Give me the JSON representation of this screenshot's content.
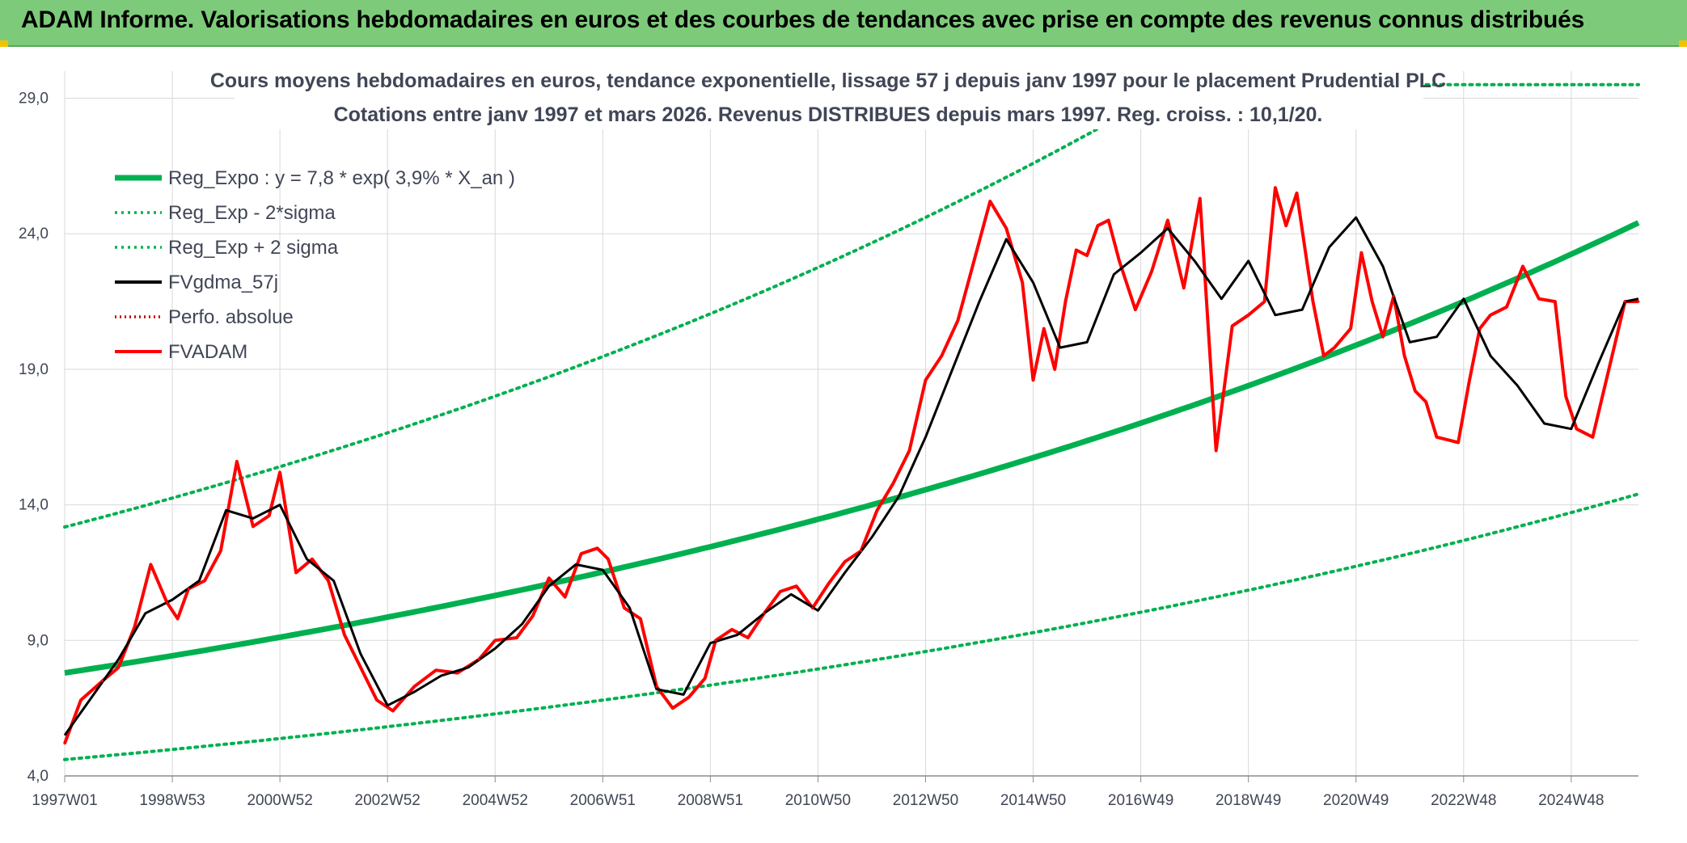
{
  "banner": {
    "title": "ADAM Informe. Valorisations hebdomadaires en euros et des courbes de tendances avec prise en compte des revenus connus distribués"
  },
  "colors": {
    "banner_bg": "#7dcb7a",
    "reg_expo": "#00b050",
    "sigma": "#00b050",
    "gdma": "#000000",
    "perfo": "#c00000",
    "fvadam": "#ff0000",
    "grid": "#d9d9d9"
  },
  "chart_data": {
    "type": "line",
    "title": "Cours moyens hebdomadaires en euros, tendance exponentielle, lissage 57 j depuis janv 1997 pour le placement Prudential PLC",
    "subtitle": "Cotations entre janv 1997 et mars 2026. Revenus DISTRIBUES depuis mars 1997. Reg. croiss. : 10,1/20.",
    "xlabel": "",
    "ylabel": "",
    "x_range": [
      1997.0,
      2026.25
    ],
    "ylim": [
      4.0,
      30.0
    ],
    "y_ticks": [
      "4,0",
      "9,0",
      "14,0",
      "19,0",
      "24,0",
      "29,0"
    ],
    "y_tick_values": [
      4,
      9,
      14,
      19,
      24,
      29
    ],
    "x_ticks": [
      "1997W01",
      "1998W53",
      "2000W52",
      "2002W52",
      "2004W52",
      "2006W51",
      "2008W51",
      "2010W50",
      "2012W50",
      "2014W50",
      "2016W49",
      "2018W49",
      "2020W49",
      "2022W48",
      "2024W48"
    ],
    "x_tick_values": [
      1997.0,
      1999.0,
      2001.0,
      2003.0,
      2005.0,
      2007.0,
      2009.0,
      2011.0,
      2013.0,
      2015.0,
      2017.0,
      2019.0,
      2021.0,
      2023.0,
      2025.0
    ],
    "grid": true,
    "legend_position": "top-left",
    "legend": [
      {
        "name": "Reg_Expo : y = 7,8 * exp( 3,9% *  X_an )",
        "style": "thick",
        "color": "#00b050"
      },
      {
        "name": "Reg_Exp - 2*sigma",
        "style": "dotted",
        "color": "#00b050"
      },
      {
        "name": "Reg_Exp + 2 sigma",
        "style": "dotted",
        "color": "#00b050"
      },
      {
        "name": "FVgdma_57j",
        "style": "solid",
        "color": "#000000"
      },
      {
        "name": "Perfo. absolue",
        "style": "dotted",
        "color": "#c00000"
      },
      {
        "name": "FVADAM",
        "style": "solid",
        "color": "#ff0000"
      }
    ],
    "regression": {
      "a": 7.8,
      "rate": 0.039,
      "lower_factor": 0.59,
      "upper_factor": 1.69
    },
    "series": [
      {
        "name": "FVADAM",
        "x": [
          1997.0,
          1997.3,
          1997.7,
          1998.0,
          1998.3,
          1998.6,
          1998.9,
          1999.1,
          1999.3,
          1999.6,
          1999.9,
          2000.2,
          2000.5,
          2000.8,
          2001.0,
          2001.3,
          2001.6,
          2001.9,
          2002.2,
          2002.5,
          2002.8,
          2003.1,
          2003.5,
          2003.9,
          2004.3,
          2004.7,
          2005.0,
          2005.4,
          2005.7,
          2006.0,
          2006.3,
          2006.6,
          2006.9,
          2007.1,
          2007.4,
          2007.7,
          2008.0,
          2008.3,
          2008.6,
          2008.9,
          2009.1,
          2009.4,
          2009.7,
          2010.0,
          2010.3,
          2010.6,
          2010.9,
          2011.2,
          2011.5,
          2011.8,
          2012.1,
          2012.4,
          2012.7,
          2013.0,
          2013.3,
          2013.6,
          2013.9,
          2014.2,
          2014.5,
          2014.8,
          2015.0,
          2015.2,
          2015.4,
          2015.6,
          2015.8,
          2016.0,
          2016.2,
          2016.4,
          2016.6,
          2016.9,
          2017.2,
          2017.5,
          2017.8,
          2018.1,
          2018.4,
          2018.7,
          2019.0,
          2019.3,
          2019.5,
          2019.7,
          2019.9,
          2020.1,
          2020.2,
          2020.4,
          2020.6,
          2020.9,
          2021.1,
          2021.3,
          2021.5,
          2021.7,
          2021.9,
          2022.1,
          2022.3,
          2022.5,
          2022.7,
          2022.9,
          2023.1,
          2023.3,
          2023.5,
          2023.8,
          2024.1,
          2024.4,
          2024.7,
          2024.9,
          2025.1,
          2025.4,
          2025.7,
          2026.0,
          2026.25
        ],
        "values": [
          5.2,
          6.8,
          7.5,
          8.0,
          9.5,
          11.8,
          10.4,
          9.8,
          10.9,
          11.2,
          12.3,
          15.6,
          13.2,
          13.6,
          15.2,
          11.5,
          12.0,
          11.2,
          9.2,
          8.0,
          6.8,
          6.4,
          7.3,
          7.9,
          7.8,
          8.3,
          9.0,
          9.1,
          9.9,
          11.3,
          10.6,
          12.2,
          12.4,
          12.0,
          10.2,
          9.8,
          7.3,
          6.5,
          6.9,
          7.6,
          9.0,
          9.4,
          9.1,
          10.0,
          10.8,
          11.0,
          10.2,
          11.1,
          11.9,
          12.3,
          13.8,
          14.8,
          16.0,
          18.6,
          19.5,
          20.8,
          23.0,
          25.2,
          24.2,
          22.2,
          18.6,
          20.5,
          19.0,
          21.5,
          23.4,
          23.2,
          24.3,
          24.5,
          23.0,
          21.2,
          22.6,
          24.5,
          22.0,
          25.3,
          16.0,
          20.6,
          21.0,
          21.5,
          25.7,
          24.3,
          25.5,
          22.8,
          21.5,
          19.5,
          19.8,
          20.5,
          23.3,
          21.5,
          20.2,
          21.7,
          19.5,
          18.2,
          17.8,
          16.5,
          16.4,
          16.3,
          18.5,
          20.5,
          21.0,
          21.3,
          22.8,
          21.6,
          21.5,
          18.0,
          16.8,
          16.5,
          19.0,
          21.5,
          21.5
        ]
      },
      {
        "name": "FVgdma_57j",
        "x": [
          1997.0,
          1997.5,
          1998.0,
          1998.5,
          1999.0,
          1999.5,
          2000.0,
          2000.5,
          2001.0,
          2001.5,
          2002.0,
          2002.5,
          2003.0,
          2003.5,
          2004.0,
          2004.5,
          2005.0,
          2005.5,
          2006.0,
          2006.5,
          2007.0,
          2007.5,
          2008.0,
          2008.5,
          2009.0,
          2009.5,
          2010.0,
          2010.5,
          2011.0,
          2011.5,
          2012.0,
          2012.5,
          2013.0,
          2013.5,
          2014.0,
          2014.5,
          2015.0,
          2015.5,
          2016.0,
          2016.5,
          2017.0,
          2017.5,
          2018.0,
          2018.5,
          2019.0,
          2019.5,
          2020.0,
          2020.5,
          2021.0,
          2021.5,
          2022.0,
          2022.5,
          2023.0,
          2023.5,
          2024.0,
          2024.5,
          2025.0,
          2025.5,
          2026.0,
          2026.25
        ],
        "values": [
          5.5,
          6.9,
          8.3,
          10.0,
          10.5,
          11.2,
          13.8,
          13.5,
          14.0,
          12.0,
          11.2,
          8.5,
          6.6,
          7.1,
          7.7,
          8.0,
          8.7,
          9.6,
          11.0,
          11.8,
          11.6,
          10.2,
          7.2,
          7.0,
          8.9,
          9.2,
          10.0,
          10.7,
          10.1,
          11.5,
          12.8,
          14.3,
          16.5,
          19.0,
          21.5,
          23.8,
          22.2,
          19.8,
          20.0,
          22.5,
          23.3,
          24.2,
          23.0,
          21.6,
          23.0,
          21.0,
          21.2,
          23.5,
          24.6,
          22.8,
          20.0,
          20.2,
          21.6,
          19.5,
          18.4,
          17.0,
          16.8,
          19.2,
          21.5,
          21.6
        ]
      }
    ]
  }
}
